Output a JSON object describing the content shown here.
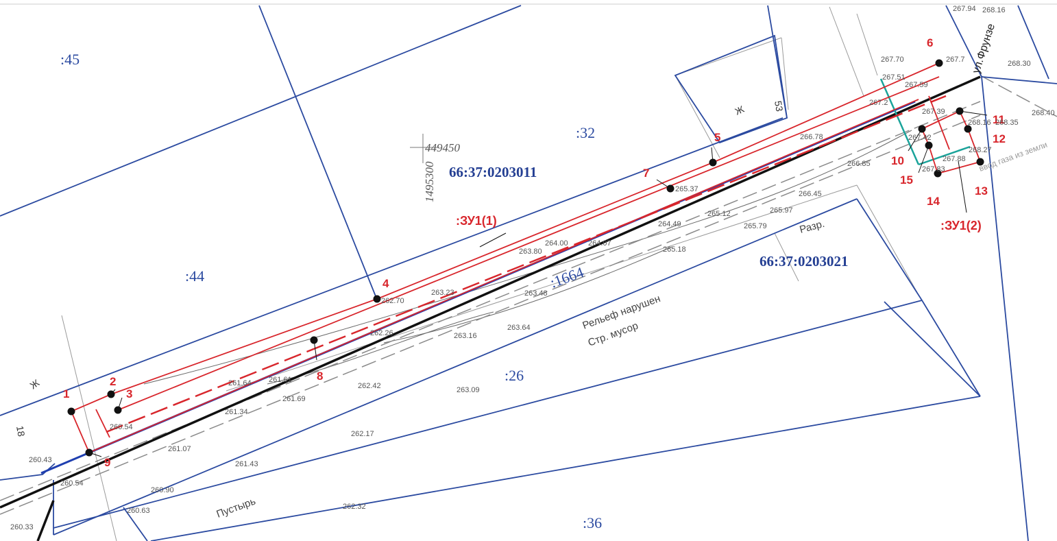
{
  "parcels": {
    "p45": ":45",
    "p44": ":44",
    "p32": ":32",
    "p26": ":26",
    "p36": ":36",
    "p1664": ":1664"
  },
  "cadastral_quarters": {
    "q1": "66:37:0203011",
    "q2": "66:37:0203021"
  },
  "land_plots": {
    "zu1_1": ":ЗУ1(1)",
    "zu1_2": ":ЗУ1(2)"
  },
  "points": [
    "1",
    "2",
    "3",
    "4",
    "5",
    "6",
    "7",
    "8",
    "9",
    "10",
    "11",
    "12",
    "13",
    "14",
    "15"
  ],
  "coordinates": {
    "x": "449450",
    "y": "1495300"
  },
  "street": "ул.Фрунзе",
  "notes": {
    "relief": "Рельеф нарушен",
    "debris": "Стр. мусор",
    "wasteland": "Пустырь",
    "razr": "Разр.",
    "gas": "ввод газа из земли",
    "zh1": "Ж",
    "zh2": "Ж",
    "n18": "18",
    "n53": "53"
  },
  "elevations": [
    "267.94",
    "268.16",
    "267.70",
    "267.7",
    "268.30",
    "267.51",
    "267.59",
    "267.2",
    "267.39",
    "268.40",
    "268.16",
    "268.35",
    "266.78",
    "267.42",
    "268.27",
    "266.85",
    "267.83",
    "267.88",
    "265.37",
    "266.45",
    "265.12",
    "265.97",
    "264.49",
    "265.79",
    "263.80",
    "264.00",
    "264.07",
    "265.18",
    "263.23",
    "263.48",
    "262.70",
    "263.64",
    "262.26",
    "263.16",
    "261.64",
    "261.61",
    "262.42",
    "263.09",
    "261.69",
    "261.34",
    "260.54",
    "262.17",
    "260.43",
    "261.07",
    "261.43",
    "260.54",
    "260.90",
    "262.32",
    "260.63",
    "260.33"
  ],
  "colors": {
    "boundary_blue": "#2b4aa0",
    "red_line": "#d8262c",
    "road_black": "#111111",
    "teal": "#1aa39a",
    "gray_line": "#8a8a8a"
  }
}
